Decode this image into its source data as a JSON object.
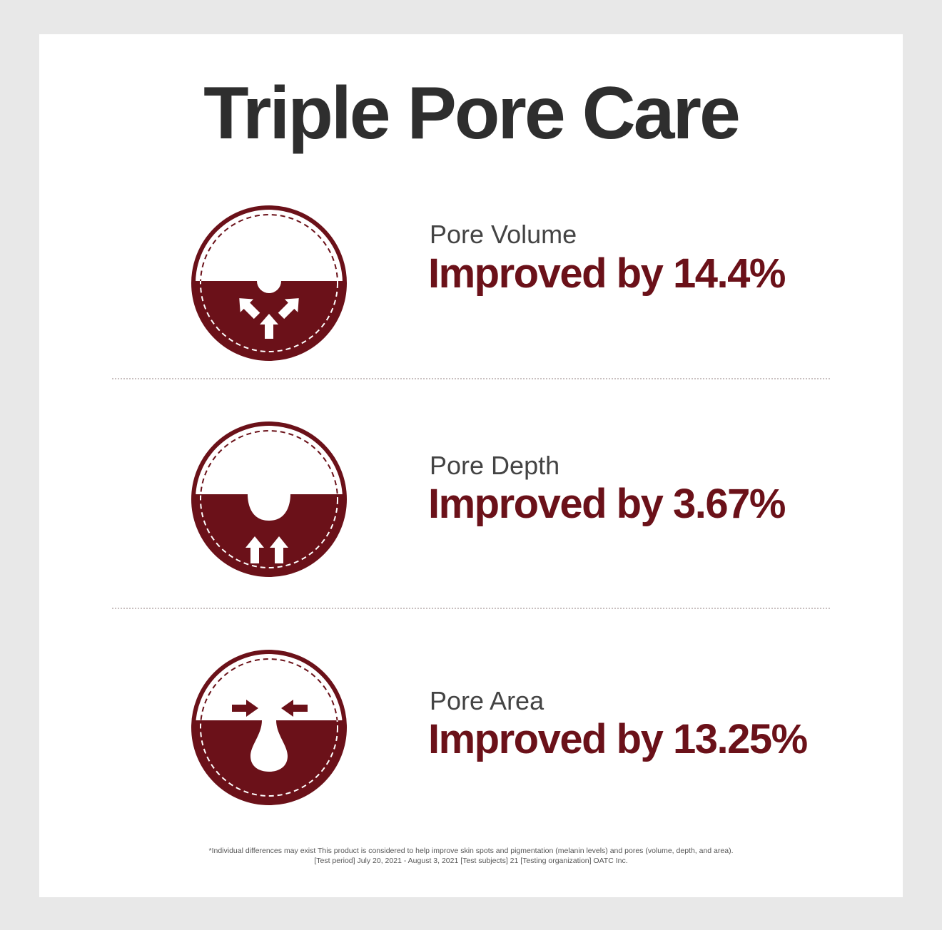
{
  "title": "Triple Pore Care",
  "colors": {
    "accent": "#6b1119",
    "title": "#2e2e2e",
    "background": "#e8e8e8"
  },
  "items": [
    {
      "label": "Pore Volume",
      "value": "Improved by 14.4%",
      "icon": "pore-volume-icon"
    },
    {
      "label": "Pore Depth",
      "value": "Improved by 3.67%",
      "icon": "pore-depth-icon"
    },
    {
      "label": "Pore Area",
      "value": "Improved by 13.25%",
      "icon": "pore-area-icon"
    }
  ],
  "footnote": {
    "line1": "*Individual differences may exist This product is considered to help improve skin spots and pigmentation (melanin levels) and pores (volume, depth, and area).",
    "line2": "[Test period] July 20, 2021 - August 3, 2021 [Test subjects] 21 [Testing organization] OATC Inc."
  }
}
